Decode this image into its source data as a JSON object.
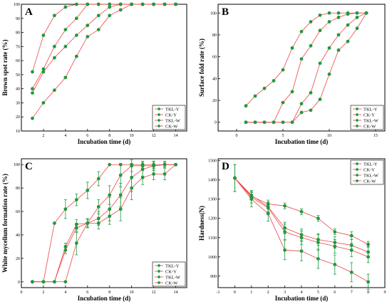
{
  "colors": {
    "line": "#ef4444",
    "marker": "#1f9a3f",
    "axis": "#000000",
    "error": "#1f9a3f"
  },
  "chart_data": [
    {
      "panel": "A",
      "type": "line",
      "xlabel": "Incubation time (d)",
      "ylabel": "Brown spot rate (%)",
      "xlim": [
        0,
        15
      ],
      "ylim": [
        10,
        100
      ],
      "xticks": [
        2,
        4,
        6,
        8,
        10,
        12,
        14
      ],
      "yticks": [
        10,
        20,
        30,
        40,
        50,
        60,
        70,
        80,
        90,
        100
      ],
      "legend_position": "bottom-right",
      "series": [
        {
          "name": "TKL-Y",
          "x": [
            1,
            2,
            3,
            4,
            5,
            6,
            7,
            8,
            9,
            10,
            11,
            12,
            13,
            14
          ],
          "y": [
            52,
            78,
            92,
            98,
            100,
            100,
            100,
            100,
            100,
            100,
            100,
            100,
            100,
            100
          ]
        },
        {
          "name": "CK-Y",
          "x": [
            1,
            2,
            3,
            4,
            5,
            6,
            7,
            8,
            9,
            10,
            11,
            12,
            13,
            14
          ],
          "y": [
            40,
            54,
            70,
            82,
            90,
            100,
            100,
            100,
            100,
            100,
            100,
            100,
            100,
            100
          ]
        },
        {
          "name": "TKL-W",
          "x": [
            1,
            2,
            3,
            4,
            5,
            6,
            7,
            8,
            9,
            10,
            11,
            12,
            13,
            14
          ],
          "y": [
            37,
            52,
            62,
            70,
            78,
            85,
            92,
            98,
            100,
            100,
            100,
            100,
            100,
            100
          ]
        },
        {
          "name": "CK-W",
          "x": [
            1,
            2,
            3,
            4,
            5,
            6,
            7,
            8,
            9,
            10,
            11,
            12,
            13,
            14
          ],
          "y": [
            19,
            30,
            39,
            48,
            63,
            77,
            82,
            92,
            96,
            100,
            100,
            100,
            100,
            100
          ]
        }
      ]
    },
    {
      "panel": "B",
      "type": "line",
      "xlabel": "Incubation time (d)",
      "ylabel": "Surface fold rate (%)",
      "xlim": [
        -2,
        16
      ],
      "ylim": [
        -8,
        108
      ],
      "xticks": [
        0,
        5,
        10,
        15
      ],
      "yticks": [
        0,
        20,
        40,
        60,
        80,
        100
      ],
      "legend_position": "bottom-right",
      "series": [
        {
          "name": "TKL-Y",
          "x": [
            1,
            2,
            3,
            4,
            5,
            6,
            7,
            8,
            9,
            10,
            11,
            12,
            13,
            14
          ],
          "y": [
            15,
            24,
            31,
            38,
            48,
            68,
            83,
            92,
            98,
            100,
            100,
            100,
            100,
            100
          ]
        },
        {
          "name": "CK-Y",
          "x": [
            1,
            2,
            3,
            4,
            5,
            6,
            7,
            8,
            9,
            10,
            11,
            12,
            13,
            14
          ],
          "y": [
            0,
            0,
            0,
            0,
            18,
            28,
            58,
            70,
            84,
            92,
            96,
            99,
            100,
            100
          ]
        },
        {
          "name": "TKL-W",
          "x": [
            1,
            2,
            3,
            4,
            5,
            6,
            7,
            8,
            9,
            10,
            11,
            12,
            13,
            14
          ],
          "y": [
            0,
            0,
            0,
            0,
            0,
            0,
            17,
            27,
            54,
            68,
            80,
            89,
            96,
            100
          ]
        },
        {
          "name": "CK-W",
          "x": [
            1,
            2,
            3,
            4,
            5,
            6,
            7,
            8,
            9,
            10,
            11,
            12,
            13,
            14
          ],
          "y": [
            0,
            0,
            0,
            0,
            0,
            0,
            9,
            11,
            21,
            44,
            66,
            74,
            86,
            100
          ]
        }
      ]
    },
    {
      "panel": "C",
      "type": "line",
      "xlabel": "Incubation time (d)",
      "ylabel": "White mycelium formation rate (%)",
      "xlim": [
        0,
        15
      ],
      "ylim": [
        -5,
        105
      ],
      "xticks": [
        0,
        2,
        4,
        6,
        8,
        10,
        12,
        14
      ],
      "yticks": [
        0,
        20,
        40,
        60,
        80,
        100
      ],
      "legend_position": "bottom-right",
      "series": [
        {
          "name": "TKL-Y",
          "x": [
            1,
            2,
            3,
            4,
            5,
            6,
            7,
            8,
            9,
            10,
            11,
            12,
            13,
            14
          ],
          "y": [
            0,
            0,
            50,
            62,
            70,
            78,
            88,
            100,
            100,
            100,
            100,
            100,
            100,
            100
          ],
          "err": [
            0,
            0,
            0,
            8,
            5,
            7,
            6,
            0,
            0,
            0,
            3,
            3,
            3,
            0
          ]
        },
        {
          "name": "CK-Y",
          "x": [
            1,
            2,
            3,
            4,
            5,
            6,
            7,
            8,
            9,
            10,
            11,
            12,
            13,
            14
          ],
          "y": [
            0,
            0,
            0,
            30,
            49,
            50,
            64,
            74,
            91,
            99,
            99,
            99,
            100,
            100
          ],
          "err": [
            0,
            0,
            0,
            3,
            4,
            3,
            6,
            8,
            10,
            5,
            3,
            3,
            2,
            0
          ]
        },
        {
          "name": "TKL-W",
          "x": [
            1,
            2,
            3,
            4,
            5,
            6,
            7,
            8,
            9,
            10,
            11,
            12,
            13,
            14
          ],
          "y": [
            0,
            0,
            0,
            27,
            46,
            50,
            54,
            62,
            74,
            89,
            96,
            99,
            100,
            100
          ],
          "err": [
            0,
            0,
            0,
            3,
            4,
            4,
            6,
            10,
            10,
            12,
            6,
            4,
            2,
            0
          ]
        },
        {
          "name": "CK-W",
          "x": [
            1,
            2,
            3,
            4,
            5,
            6,
            7,
            8,
            9,
            10,
            11,
            12,
            13,
            14
          ],
          "y": [
            0,
            0,
            0,
            0,
            33,
            50,
            50,
            56,
            62,
            80,
            89,
            92,
            92,
            100
          ],
          "err": [
            0,
            0,
            0,
            0,
            10,
            4,
            5,
            7,
            10,
            10,
            6,
            5,
            5,
            0
          ]
        }
      ]
    },
    {
      "panel": "D",
      "type": "line",
      "xlabel": "Incubation time (d)",
      "ylabel": "Hardness(N)",
      "xlim": [
        -1,
        9
      ],
      "ylim": [
        840,
        1510
      ],
      "xticks": [
        -1,
        0,
        1,
        2,
        3,
        4,
        5,
        6,
        7,
        8,
        9
      ],
      "yticks": [
        900,
        1000,
        1100,
        1200,
        1300,
        1400,
        1500
      ],
      "legend_position": "top-right",
      "series": [
        {
          "name": "TKL-Y",
          "x": [
            0,
            1,
            2,
            3,
            4,
            5,
            6,
            7,
            8
          ],
          "y": [
            1410,
            1300,
            1225,
            1035,
            1030,
            990,
            960,
            920,
            870
          ],
          "err": [
            70,
            40,
            40,
            50,
            50,
            50,
            50,
            50,
            40
          ]
        },
        {
          "name": "CK-Y",
          "x": [
            0,
            1,
            2,
            3,
            4,
            5,
            6,
            7,
            8
          ],
          "y": [
            1410,
            1310,
            1255,
            1130,
            1100,
            1075,
            1055,
            1035,
            1000
          ],
          "err": [
            70,
            30,
            30,
            40,
            35,
            40,
            35,
            35,
            30
          ]
        },
        {
          "name": "TKL-W",
          "x": [
            0,
            1,
            2,
            3,
            4,
            5,
            6,
            7,
            8
          ],
          "y": [
            1410,
            1315,
            1275,
            1265,
            1235,
            1200,
            1130,
            1110,
            1065
          ],
          "err": [
            70,
            20,
            20,
            15,
            15,
            15,
            15,
            20,
            15
          ]
        },
        {
          "name": "CK-W",
          "x": [
            0,
            1,
            2,
            3,
            4,
            5,
            6,
            7,
            8
          ],
          "y": [
            1410,
            1320,
            1260,
            1150,
            1115,
            1090,
            1075,
            1060,
            1025
          ],
          "err": [
            70,
            25,
            25,
            30,
            30,
            30,
            30,
            30,
            30
          ]
        }
      ]
    }
  ]
}
